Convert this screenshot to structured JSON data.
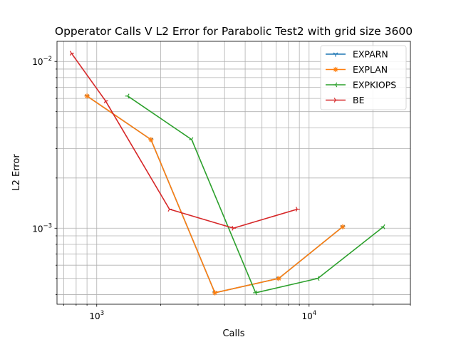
{
  "chart_data": {
    "type": "line",
    "title": "Opperator Calls V L2 Error for Parabolic Test2 with grid size 3600",
    "xlabel": "Calls",
    "ylabel": "L2 Error",
    "xscale": "log",
    "yscale": "log",
    "xlim": [
      650,
      30000
    ],
    "ylim": [
      0.00035,
      0.0132
    ],
    "grid": "both major and minor",
    "legend_position": "top-right",
    "x_tick_labels": [
      {
        "value": 1000,
        "base": "10",
        "exp": "3"
      },
      {
        "value": 10000,
        "base": "10",
        "exp": "4"
      }
    ],
    "y_tick_labels": [
      {
        "value": 0.001,
        "base": "10",
        "exp": "−3"
      },
      {
        "value": 0.01,
        "base": "10",
        "exp": "−2"
      }
    ],
    "series": [
      {
        "name": "EXPARN",
        "color": "#1f77b4",
        "marker": "tri_down",
        "x": [
          900,
          1800,
          3600,
          7200,
          14400
        ],
        "y": [
          0.0062,
          0.0034,
          0.00041,
          0.0005,
          0.00102
        ]
      },
      {
        "name": "EXPLAN",
        "color": "#ff7f0e",
        "marker": "star",
        "x": [
          900,
          1800,
          3600,
          7200,
          14400
        ],
        "y": [
          0.0062,
          0.0034,
          0.00041,
          0.0005,
          0.00102
        ]
      },
      {
        "name": "EXPKIOPS",
        "color": "#2ca02c",
        "marker": "tri_left",
        "x": [
          1400,
          2800,
          5600,
          11000,
          22400
        ],
        "y": [
          0.0062,
          0.0034,
          0.00041,
          0.0005,
          0.00102
        ]
      },
      {
        "name": "BE",
        "color": "#d62728",
        "marker": "tri_right",
        "x": [
          760,
          1100,
          2200,
          4400,
          8800
        ],
        "y": [
          0.0112,
          0.0058,
          0.0013,
          0.001,
          0.0013
        ]
      }
    ]
  }
}
